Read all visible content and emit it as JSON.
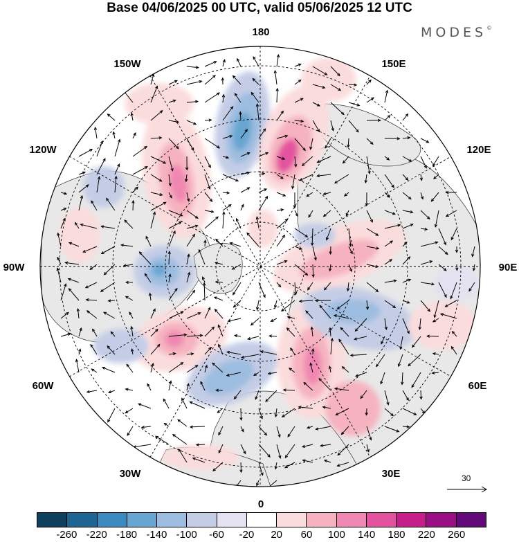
{
  "title": "Base 04/06/2025 00 UTC, valid 05/06/2025 12 UTC",
  "brand": "MODES",
  "brand_mark": "©",
  "longitude_labels": {
    "top": "180",
    "bottom": "0",
    "left": "90W",
    "right": "90E",
    "upper_left": "150W",
    "upper_right": "150E",
    "left_upper": "120W",
    "right_upper": "120E",
    "left_lower": "60W",
    "right_lower": "60E",
    "lower_left": "30W",
    "lower_right": "30E"
  },
  "vector_scale": {
    "label": "30"
  },
  "colorbar": {
    "colors": [
      "#0f3f5f",
      "#1f6594",
      "#3a8ac0",
      "#68a6d1",
      "#9dbde0",
      "#c5cde6",
      "#e4e2f0",
      "#ffffff",
      "#fbdcdc",
      "#f6b3bf",
      "#f087b2",
      "#e3529f",
      "#c61d8a",
      "#9a0e83",
      "#64097a"
    ],
    "ticks": [
      "-260",
      "-220",
      "-180",
      "-140",
      "-100",
      "-60",
      "-20",
      "20",
      "60",
      "100",
      "140",
      "180",
      "220",
      "260"
    ]
  }
}
